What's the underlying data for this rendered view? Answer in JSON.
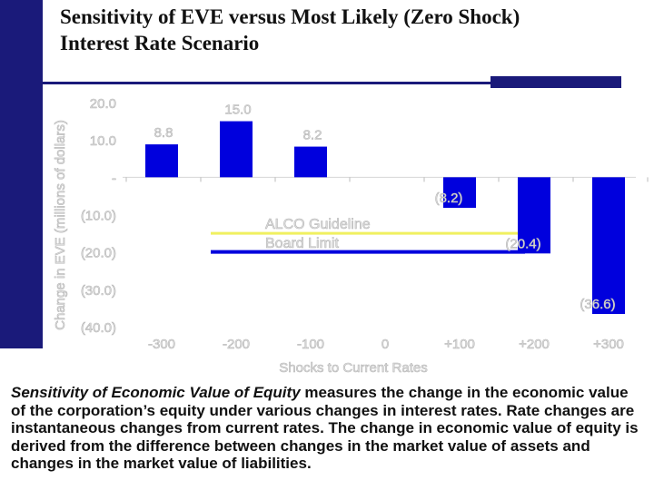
{
  "title_line1": "Sensitivity of EVE versus Most Likely (Zero Shock)",
  "title_line2": "Interest Rate Scenario",
  "chart_data": {
    "type": "bar",
    "categories": [
      "-300",
      "-200",
      "-100",
      "0",
      "+100",
      "+200",
      "+300"
    ],
    "values": [
      8.8,
      15.0,
      8.2,
      0,
      -8.2,
      -20.4,
      -36.6
    ],
    "data_labels": [
      "8.8",
      "15.0",
      "8.2",
      "",
      "(8.2)",
      "(20.4)",
      "(36.6)"
    ],
    "yticks": [
      20,
      10,
      0,
      -10,
      -20,
      -30,
      -40
    ],
    "ytick_labels": [
      "20.0",
      "10.0",
      "-",
      "(10.0)",
      "(20.0)",
      "(30.0)",
      "(40.0)"
    ],
    "ylim": [
      -40,
      20
    ],
    "xlabel": "Shocks to Current Rates",
    "ylabel": "Change in EVE (millions of dollars)",
    "bar_color": "#0000dd",
    "reference_lines": [
      {
        "label": "ALCO Guideline",
        "value": -15.0,
        "color": "#f0f060"
      },
      {
        "label": "Board Limit",
        "value": -20.0,
        "color": "#0000dd"
      }
    ],
    "grid": false
  },
  "caption": {
    "lead": "Sensitivity of Economic Value of Equity",
    "text": " measures the change in the economic value of the corporation’s equity under various changes in interest rates.  Rate changes are instantaneous changes from current rates.  The change in economic value of equity is derived from the difference between changes in the market value of assets and changes in the market value of liabilities."
  }
}
